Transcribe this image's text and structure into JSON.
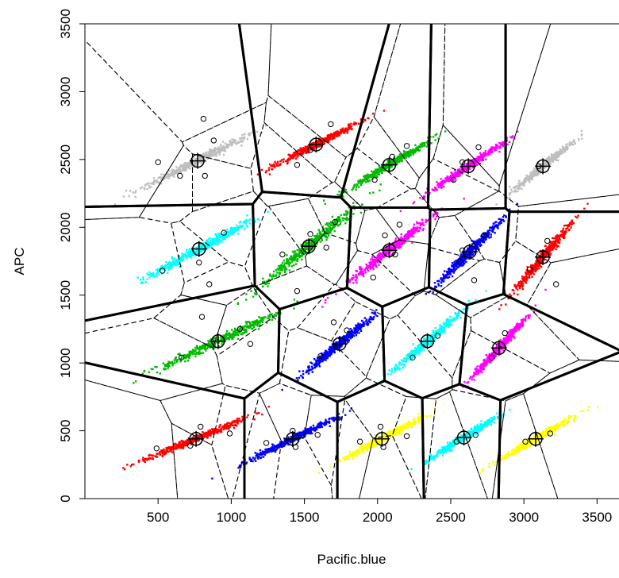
{
  "chart_data": {
    "type": "scatter",
    "title": "",
    "xlabel": "Pacific.blue",
    "ylabel": "APC",
    "xlim": [
      0,
      3650
    ],
    "ylim": [
      0,
      3500
    ],
    "xticks": [
      "500",
      "1000",
      "1500",
      "2000",
      "2500",
      "3000",
      "3500"
    ],
    "yticks": [
      "0",
      "500",
      "1000",
      "1500",
      "2000",
      "2500",
      "3000",
      "3500"
    ],
    "grid": false,
    "legend": "none",
    "colors": {
      "red": "#ff0000",
      "green": "#00bb00",
      "blue": "#0000ff",
      "cyan": "#00ffff",
      "magenta": "#ff00ff",
      "yellow": "#ffff00",
      "gray": "#bebebe"
    },
    "clusters": [
      {
        "color": "gray",
        "center": [
          770,
          2490
        ],
        "spread": [
          300,
          180
        ]
      },
      {
        "color": "red",
        "center": [
          1580,
          2610
        ],
        "spread": [
          240,
          150
        ]
      },
      {
        "color": "green",
        "center": [
          2080,
          2460
        ],
        "spread": [
          220,
          160
        ]
      },
      {
        "color": "magenta",
        "center": [
          2620,
          2450
        ],
        "spread": [
          210,
          170
        ]
      },
      {
        "color": "gray",
        "center": [
          3130,
          2450
        ],
        "spread": [
          170,
          170
        ]
      },
      {
        "color": "cyan",
        "center": [
          780,
          1840
        ],
        "spread": [
          300,
          200
        ]
      },
      {
        "color": "green",
        "center": [
          1530,
          1860
        ],
        "spread": [
          270,
          270
        ]
      },
      {
        "color": "magenta",
        "center": [
          2080,
          1830
        ],
        "spread": [
          240,
          230
        ]
      },
      {
        "color": "blue",
        "center": [
          2630,
          1820
        ],
        "spread": [
          190,
          230
        ]
      },
      {
        "color": "red",
        "center": [
          3130,
          1780
        ],
        "spread": [
          170,
          240
        ]
      },
      {
        "color": "green",
        "center": [
          910,
          1160
        ],
        "spread": [
          350,
          200
        ]
      },
      {
        "color": "blue",
        "center": [
          1740,
          1140
        ],
        "spread": [
          200,
          200
        ]
      },
      {
        "color": "cyan",
        "center": [
          2340,
          1160
        ],
        "spread": [
          190,
          200
        ]
      },
      {
        "color": "magenta",
        "center": [
          2830,
          1110
        ],
        "spread": [
          150,
          200
        ]
      },
      {
        "color": "red",
        "center": [
          760,
          440
        ],
        "spread": [
          300,
          150
        ]
      },
      {
        "color": "blue",
        "center": [
          1420,
          440
        ],
        "spread": [
          250,
          150
        ]
      },
      {
        "color": "yellow",
        "center": [
          2030,
          440
        ],
        "spread": [
          230,
          150
        ]
      },
      {
        "color": "cyan",
        "center": [
          2590,
          450
        ],
        "spread": [
          200,
          150
        ]
      },
      {
        "color": "yellow",
        "center": [
          3080,
          440
        ],
        "spread": [
          200,
          140
        ]
      }
    ],
    "subcenters": [
      [
        500,
        2480
      ],
      [
        650,
        2380
      ],
      [
        820,
        2380
      ],
      [
        880,
        2640
      ],
      [
        810,
        2800
      ],
      [
        1450,
        2460
      ],
      [
        1540,
        2570
      ],
      [
        1680,
        2760
      ],
      [
        1980,
        2350
      ],
      [
        2200,
        2600
      ],
      [
        2100,
        2520
      ],
      [
        2520,
        2350
      ],
      [
        2690,
        2590
      ],
      [
        2580,
        2480
      ],
      [
        3100,
        2450
      ],
      [
        530,
        1680
      ],
      [
        780,
        1740
      ],
      [
        950,
        1960
      ],
      [
        850,
        1580
      ],
      [
        1350,
        1800
      ],
      [
        1540,
        1950
      ],
      [
        1450,
        1530
      ],
      [
        1650,
        1850
      ],
      [
        1710,
        2040
      ],
      [
        1970,
        1630
      ],
      [
        2150,
        2020
      ],
      [
        2120,
        1800
      ],
      [
        2050,
        1940
      ],
      [
        2560,
        1750
      ],
      [
        2730,
        1940
      ],
      [
        2660,
        1610
      ],
      [
        2580,
        1830
      ],
      [
        3040,
        1690
      ],
      [
        3160,
        1900
      ],
      [
        3220,
        1580
      ],
      [
        660,
        1040
      ],
      [
        800,
        1340
      ],
      [
        1130,
        1140
      ],
      [
        1060,
        1250
      ],
      [
        1610,
        1050
      ],
      [
        1790,
        1240
      ],
      [
        1700,
        1300
      ],
      [
        2240,
        1040
      ],
      [
        2410,
        1200
      ],
      [
        2780,
        1040
      ],
      [
        2870,
        1220
      ],
      [
        490,
        370
      ],
      [
        720,
        390
      ],
      [
        790,
        530
      ],
      [
        990,
        480
      ],
      [
        1240,
        410
      ],
      [
        1440,
        380
      ],
      [
        1590,
        470
      ],
      [
        1420,
        500
      ],
      [
        1880,
        420
      ],
      [
        2040,
        380
      ],
      [
        2200,
        460
      ],
      [
        2020,
        530
      ],
      [
        2540,
        420
      ],
      [
        2670,
        470
      ],
      [
        3010,
        420
      ],
      [
        3180,
        480
      ]
    ]
  }
}
